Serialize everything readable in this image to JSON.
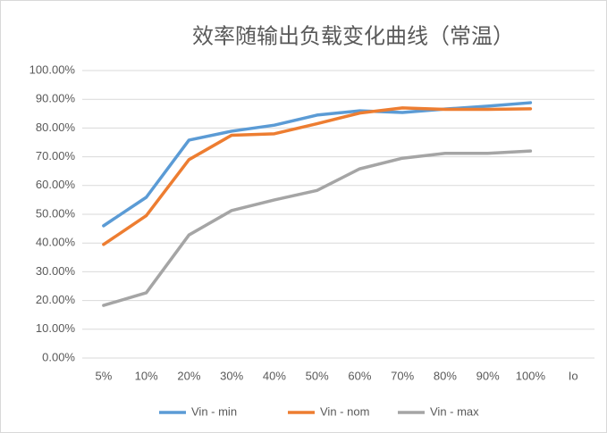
{
  "chart_data": {
    "type": "line",
    "title": "效率随输出负载变化曲线（常温）",
    "x_label": "Io",
    "categories": [
      "5%",
      "10%",
      "20%",
      "30%",
      "40%",
      "50%",
      "60%",
      "70%",
      "80%",
      "90%",
      "100%"
    ],
    "series": [
      {
        "name": "Vin - min",
        "color": "#5b9bd5",
        "values": [
          46.0,
          55.9,
          75.8,
          78.9,
          81.0,
          84.5,
          86.0,
          85.4,
          86.6,
          87.6,
          88.8
        ]
      },
      {
        "name": "Vin - nom",
        "color": "#ed7d31",
        "values": [
          39.5,
          49.5,
          69.0,
          77.5,
          78.0,
          81.5,
          85.2,
          87.0,
          86.5,
          86.5,
          86.7
        ]
      },
      {
        "name": "Vin - max",
        "color": "#a5a5a5",
        "values": [
          18.3,
          22.7,
          42.8,
          51.3,
          55.0,
          58.3,
          65.8,
          69.5,
          71.2,
          71.2,
          72.0
        ]
      }
    ],
    "ylim": [
      0,
      100
    ],
    "yticks": [
      {
        "value": 0,
        "label": "0.00%"
      },
      {
        "value": 10,
        "label": "10.00%"
      },
      {
        "value": 20,
        "label": "20.00%"
      },
      {
        "value": 30,
        "label": "30.00%"
      },
      {
        "value": 40,
        "label": "40.00%"
      },
      {
        "value": 50,
        "label": "50.00%"
      },
      {
        "value": 60,
        "label": "60.00%"
      },
      {
        "value": 70,
        "label": "70.00%"
      },
      {
        "value": 80,
        "label": "80.00%"
      },
      {
        "value": 90,
        "label": "90.00%"
      },
      {
        "value": 100,
        "label": "100.00%"
      }
    ],
    "grid": true,
    "legend": "bottom"
  }
}
